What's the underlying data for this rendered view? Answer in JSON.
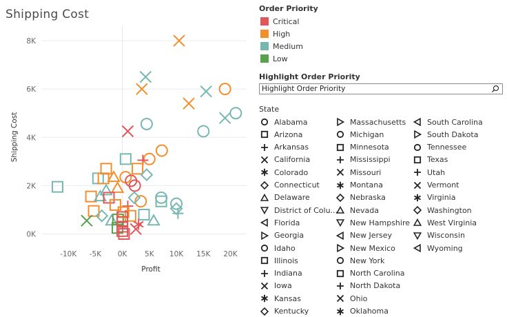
{
  "title": "Shipping Cost",
  "priority_legend": {
    "header": "Order Priority",
    "items": [
      {
        "label": "Critical",
        "color": "#e15759"
      },
      {
        "label": "High",
        "color": "#f28e2b"
      },
      {
        "label": "Medium",
        "color": "#76b7b2"
      },
      {
        "label": "Low",
        "color": "#59a14f"
      }
    ]
  },
  "highlight": {
    "header": "Highlight Order Priority",
    "value": "Highlight Order Priority",
    "icon": "search-icon"
  },
  "state_legend": {
    "header": "State",
    "columns": [
      [
        {
          "label": "Alabama",
          "shape": "circle"
        },
        {
          "label": "Arizona",
          "shape": "square"
        },
        {
          "label": "Arkansas",
          "shape": "plus"
        },
        {
          "label": "California",
          "shape": "cross"
        },
        {
          "label": "Colorado",
          "shape": "asterisk"
        },
        {
          "label": "Connecticut",
          "shape": "diamond"
        },
        {
          "label": "Delaware",
          "shape": "triangle-up"
        },
        {
          "label": "District of Colu...",
          "shape": "triangle-down"
        },
        {
          "label": "Florida",
          "shape": "triangle-left"
        },
        {
          "label": "Georgia",
          "shape": "triangle-right"
        },
        {
          "label": "Idaho",
          "shape": "circle"
        },
        {
          "label": "Illinois",
          "shape": "square"
        },
        {
          "label": "Indiana",
          "shape": "plus"
        },
        {
          "label": "Iowa",
          "shape": "cross"
        },
        {
          "label": "Kansas",
          "shape": "asterisk"
        },
        {
          "label": "Kentucky",
          "shape": "diamond"
        }
      ],
      [
        {
          "label": "Massachusetts",
          "shape": "triangle-right"
        },
        {
          "label": "Michigan",
          "shape": "circle"
        },
        {
          "label": "Minnesota",
          "shape": "square"
        },
        {
          "label": "Mississippi",
          "shape": "plus"
        },
        {
          "label": "Missouri",
          "shape": "cross"
        },
        {
          "label": "Montana",
          "shape": "asterisk"
        },
        {
          "label": "Nebraska",
          "shape": "diamond"
        },
        {
          "label": "Nevada",
          "shape": "triangle-up"
        },
        {
          "label": "New Hampshire",
          "shape": "triangle-down"
        },
        {
          "label": "New Jersey",
          "shape": "triangle-left"
        },
        {
          "label": "New Mexico",
          "shape": "triangle-right"
        },
        {
          "label": "New York",
          "shape": "circle"
        },
        {
          "label": "North Carolina",
          "shape": "square"
        },
        {
          "label": "North Dakota",
          "shape": "plus"
        },
        {
          "label": "Ohio",
          "shape": "cross"
        },
        {
          "label": "Oklahoma",
          "shape": "asterisk"
        }
      ],
      [
        {
          "label": "South Carolina",
          "shape": "triangle-left"
        },
        {
          "label": "South Dakota",
          "shape": "triangle-right"
        },
        {
          "label": "Tennessee",
          "shape": "circle"
        },
        {
          "label": "Texas",
          "shape": "square"
        },
        {
          "label": "Utah",
          "shape": "plus"
        },
        {
          "label": "Vermont",
          "shape": "cross"
        },
        {
          "label": "Virginia",
          "shape": "asterisk"
        },
        {
          "label": "Washington",
          "shape": "diamond"
        },
        {
          "label": "West Virginia",
          "shape": "triangle-up"
        },
        {
          "label": "Wisconsin",
          "shape": "triangle-down"
        },
        {
          "label": "Wyoming",
          "shape": "triangle-left"
        }
      ]
    ]
  },
  "chart_data": {
    "type": "scatter",
    "title": "Shipping Cost",
    "xlabel": "Profit",
    "ylabel": "Shipping Cost",
    "xlim": [
      -15000,
      23000
    ],
    "ylim": [
      -300,
      8600
    ],
    "xticks": [
      -10000,
      -5000,
      0,
      5000,
      10000,
      15000,
      20000
    ],
    "xtick_labels": [
      "-10K",
      "-5K",
      "0K",
      "5K",
      "10K",
      "15K",
      "20K"
    ],
    "yticks": [
      0,
      2000,
      4000,
      6000,
      8000
    ],
    "ytick_labels": [
      "0K",
      "2K",
      "4K",
      "6K",
      "8K"
    ],
    "grid": "horizontal",
    "colors": {
      "Critical": "#e15759",
      "High": "#f28e2b",
      "Medium": "#76b7b2",
      "Low": "#59a14f"
    },
    "points": [
      {
        "x": 10500,
        "y": 8000,
        "priority": "High",
        "shape": "cross"
      },
      {
        "x": 4300,
        "y": 6500,
        "priority": "Medium",
        "shape": "cross"
      },
      {
        "x": 3600,
        "y": 6000,
        "priority": "High",
        "shape": "cross"
      },
      {
        "x": 19000,
        "y": 6000,
        "priority": "High",
        "shape": "circle"
      },
      {
        "x": 15500,
        "y": 5900,
        "priority": "Medium",
        "shape": "cross"
      },
      {
        "x": 12300,
        "y": 5400,
        "priority": "High",
        "shape": "cross"
      },
      {
        "x": 21000,
        "y": 5000,
        "priority": "Medium",
        "shape": "circle"
      },
      {
        "x": 19000,
        "y": 4800,
        "priority": "Medium",
        "shape": "cross"
      },
      {
        "x": 4500,
        "y": 4550,
        "priority": "Medium",
        "shape": "circle"
      },
      {
        "x": 15000,
        "y": 4250,
        "priority": "Medium",
        "shape": "circle"
      },
      {
        "x": 1000,
        "y": 4250,
        "priority": "Critical",
        "shape": "cross"
      },
      {
        "x": 7300,
        "y": 3450,
        "priority": "High",
        "shape": "circle"
      },
      {
        "x": 5000,
        "y": 3100,
        "priority": "High",
        "shape": "circle"
      },
      {
        "x": 3800,
        "y": 3050,
        "priority": "Critical",
        "shape": "plus"
      },
      {
        "x": 600,
        "y": 3100,
        "priority": "Medium",
        "shape": "square"
      },
      {
        "x": -3000,
        "y": 2700,
        "priority": "High",
        "shape": "square"
      },
      {
        "x": 2800,
        "y": 2700,
        "priority": "High",
        "shape": "square"
      },
      {
        "x": 4500,
        "y": 2450,
        "priority": "Medium",
        "shape": "diamond"
      },
      {
        "x": -12000,
        "y": 1950,
        "priority": "Medium",
        "shape": "square"
      },
      {
        "x": -4500,
        "y": 2300,
        "priority": "Medium",
        "shape": "square"
      },
      {
        "x": -3500,
        "y": 2300,
        "priority": "High",
        "shape": "square"
      },
      {
        "x": 600,
        "y": 2350,
        "priority": "High",
        "shape": "circle"
      },
      {
        "x": -1600,
        "y": 2350,
        "priority": "High",
        "shape": "triangle-up"
      },
      {
        "x": 1600,
        "y": 2200,
        "priority": "Critical",
        "shape": "circle"
      },
      {
        "x": 2300,
        "y": 2000,
        "priority": "Critical",
        "shape": "circle"
      },
      {
        "x": -900,
        "y": 1900,
        "priority": "High",
        "shape": "triangle-up"
      },
      {
        "x": -3000,
        "y": 1800,
        "priority": "Medium",
        "shape": "triangle-up"
      },
      {
        "x": -5800,
        "y": 1550,
        "priority": "High",
        "shape": "square"
      },
      {
        "x": -4100,
        "y": 1550,
        "priority": "Medium",
        "shape": "triangle-up"
      },
      {
        "x": -2500,
        "y": 1500,
        "priority": "Critical",
        "shape": "square"
      },
      {
        "x": 7200,
        "y": 1500,
        "priority": "Medium",
        "shape": "circle"
      },
      {
        "x": 7200,
        "y": 1350,
        "priority": "Medium",
        "shape": "square"
      },
      {
        "x": 3400,
        "y": 1350,
        "priority": "High",
        "shape": "circle"
      },
      {
        "x": 2200,
        "y": 1500,
        "priority": "Medium",
        "shape": "diamond"
      },
      {
        "x": -1300,
        "y": 1200,
        "priority": "High",
        "shape": "square"
      },
      {
        "x": 1000,
        "y": 1150,
        "priority": "Critical",
        "shape": "plus"
      },
      {
        "x": 10000,
        "y": 1250,
        "priority": "Medium",
        "shape": "circle"
      },
      {
        "x": 10000,
        "y": 1050,
        "priority": "Medium",
        "shape": "diamond"
      },
      {
        "x": 10300,
        "y": 850,
        "priority": "Medium",
        "shape": "plus"
      },
      {
        "x": -5300,
        "y": 950,
        "priority": "High",
        "shape": "square"
      },
      {
        "x": -3800,
        "y": 750,
        "priority": "Medium",
        "shape": "diamond"
      },
      {
        "x": -2000,
        "y": 550,
        "priority": "Medium",
        "shape": "triangle-up"
      },
      {
        "x": 5800,
        "y": 550,
        "priority": "Medium",
        "shape": "triangle-up"
      },
      {
        "x": -6600,
        "y": 550,
        "priority": "Low",
        "shape": "cross"
      },
      {
        "x": 4000,
        "y": 800,
        "priority": "Medium",
        "shape": "square"
      },
      {
        "x": -800,
        "y": 600,
        "priority": "Low",
        "shape": "square"
      },
      {
        "x": 1500,
        "y": 750,
        "priority": "High",
        "shape": "square"
      },
      {
        "x": 3000,
        "y": 400,
        "priority": "Critical",
        "shape": "asterisk"
      },
      {
        "x": 2500,
        "y": 200,
        "priority": "Critical",
        "shape": "cross"
      },
      {
        "x": -900,
        "y": 250,
        "priority": "Low",
        "shape": "square"
      },
      {
        "x": 200,
        "y": 900,
        "priority": "High",
        "shape": "square"
      },
      {
        "x": 0,
        "y": 700,
        "priority": "Critical",
        "shape": "square"
      },
      {
        "x": 0,
        "y": 500,
        "priority": "Critical",
        "shape": "square"
      },
      {
        "x": 0,
        "y": 300,
        "priority": "Critical",
        "shape": "square"
      },
      {
        "x": 0,
        "y": 120,
        "priority": "Critical",
        "shape": "square"
      },
      {
        "x": 300,
        "y": 0,
        "priority": "Critical",
        "shape": "square"
      }
    ]
  }
}
